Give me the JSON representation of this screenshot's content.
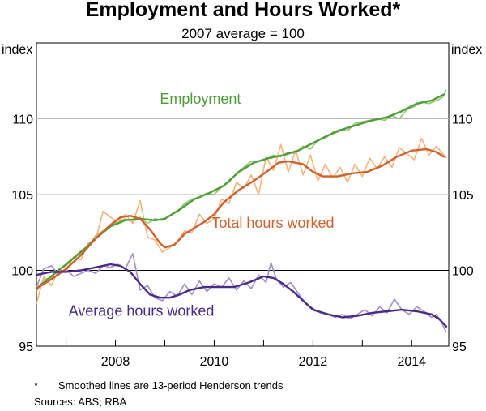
{
  "chart_data": {
    "type": "line",
    "title": "Employment and Hours Worked*",
    "subtitle": "2007 average = 100",
    "ylabel_left": "index",
    "ylabel_right": "index",
    "ylim": [
      95,
      115
    ],
    "xlim": [
      2006.4,
      2014.75
    ],
    "y_ticks": [
      95,
      100,
      105,
      110
    ],
    "x_ticks": [
      2008,
      2010,
      2012,
      2014
    ],
    "x_tick_labels": [
      "2008",
      "2010",
      "2012",
      "2014"
    ],
    "reference_line": 100,
    "grid": "horizontal",
    "series": [
      {
        "name": "Employment",
        "color": "#4f9d3a",
        "raw_color": "#8cc96c",
        "label_pos": [
          2008.9,
          111.0
        ],
        "trend": [
          [
            2006.4,
            98.8
          ],
          [
            2006.7,
            99.6
          ],
          [
            2007.0,
            100.4
          ],
          [
            2007.3,
            101.2
          ],
          [
            2007.6,
            102.1
          ],
          [
            2007.9,
            102.9
          ],
          [
            2008.2,
            103.3
          ],
          [
            2008.5,
            103.4
          ],
          [
            2008.8,
            103.3
          ],
          [
            2009.0,
            103.4
          ],
          [
            2009.3,
            104.0
          ],
          [
            2009.6,
            104.7
          ],
          [
            2009.9,
            105.1
          ],
          [
            2010.2,
            105.6
          ],
          [
            2010.5,
            106.5
          ],
          [
            2010.8,
            107.1
          ],
          [
            2011.1,
            107.4
          ],
          [
            2011.4,
            107.6
          ],
          [
            2011.7,
            107.9
          ],
          [
            2012.0,
            108.4
          ],
          [
            2012.3,
            108.9
          ],
          [
            2012.6,
            109.3
          ],
          [
            2012.9,
            109.6
          ],
          [
            2013.2,
            109.9
          ],
          [
            2013.5,
            110.1
          ],
          [
            2013.8,
            110.5
          ],
          [
            2014.1,
            111.0
          ],
          [
            2014.4,
            111.2
          ],
          [
            2014.65,
            111.6
          ]
        ],
        "raw": [
          [
            2006.4,
            98.6
          ],
          [
            2006.55,
            99.4
          ],
          [
            2006.7,
            99.5
          ],
          [
            2006.85,
            100.1
          ],
          [
            2007.0,
            100.3
          ],
          [
            2007.15,
            100.8
          ],
          [
            2007.3,
            101.3
          ],
          [
            2007.45,
            101.6
          ],
          [
            2007.6,
            102.3
          ],
          [
            2007.75,
            102.6
          ],
          [
            2007.9,
            103.0
          ],
          [
            2008.05,
            103.2
          ],
          [
            2008.2,
            103.4
          ],
          [
            2008.35,
            103.2
          ],
          [
            2008.5,
            103.5
          ],
          [
            2008.65,
            103.1
          ],
          [
            2008.8,
            103.4
          ],
          [
            2008.95,
            103.3
          ],
          [
            2009.1,
            103.6
          ],
          [
            2009.25,
            103.9
          ],
          [
            2009.4,
            104.4
          ],
          [
            2009.55,
            104.7
          ],
          [
            2009.7,
            104.8
          ],
          [
            2009.85,
            105.1
          ],
          [
            2010.0,
            105.0
          ],
          [
            2010.15,
            105.5
          ],
          [
            2010.3,
            105.8
          ],
          [
            2010.45,
            106.4
          ],
          [
            2010.6,
            106.8
          ],
          [
            2010.75,
            107.2
          ],
          [
            2010.9,
            107.2
          ],
          [
            2011.05,
            107.3
          ],
          [
            2011.2,
            107.6
          ],
          [
            2011.35,
            107.5
          ],
          [
            2011.5,
            107.8
          ],
          [
            2011.65,
            107.7
          ],
          [
            2011.8,
            108.2
          ],
          [
            2011.95,
            108.0
          ],
          [
            2012.1,
            108.6
          ],
          [
            2012.25,
            108.7
          ],
          [
            2012.4,
            109.1
          ],
          [
            2012.55,
            109.3
          ],
          [
            2012.7,
            109.2
          ],
          [
            2012.85,
            109.7
          ],
          [
            2013.0,
            109.8
          ],
          [
            2013.15,
            109.9
          ],
          [
            2013.3,
            110.0
          ],
          [
            2013.45,
            109.9
          ],
          [
            2013.6,
            110.2
          ],
          [
            2013.75,
            110.0
          ],
          [
            2013.9,
            110.6
          ],
          [
            2014.05,
            110.8
          ],
          [
            2014.2,
            111.1
          ],
          [
            2014.35,
            111.0
          ],
          [
            2014.5,
            111.2
          ],
          [
            2014.62,
            111.4
          ],
          [
            2014.7,
            111.9
          ]
        ]
      },
      {
        "name": "Total hours worked",
        "color": "#d2602a",
        "raw_color": "#f6b27c",
        "label_pos": [
          2009.95,
          102.8
        ],
        "trend": [
          [
            2006.4,
            98.8
          ],
          [
            2006.7,
            99.4
          ],
          [
            2007.0,
            100.1
          ],
          [
            2007.3,
            101.0
          ],
          [
            2007.6,
            102.1
          ],
          [
            2007.9,
            103.0
          ],
          [
            2008.1,
            103.5
          ],
          [
            2008.3,
            103.6
          ],
          [
            2008.5,
            103.4
          ],
          [
            2008.7,
            102.7
          ],
          [
            2008.9,
            101.8
          ],
          [
            2009.0,
            101.5
          ],
          [
            2009.2,
            101.7
          ],
          [
            2009.4,
            102.4
          ],
          [
            2009.6,
            102.8
          ],
          [
            2009.8,
            103.2
          ],
          [
            2010.0,
            103.7
          ],
          [
            2010.2,
            104.5
          ],
          [
            2010.5,
            105.3
          ],
          [
            2010.8,
            105.9
          ],
          [
            2011.1,
            106.6
          ],
          [
            2011.3,
            107.1
          ],
          [
            2011.5,
            107.2
          ],
          [
            2011.8,
            107.0
          ],
          [
            2012.0,
            106.5
          ],
          [
            2012.2,
            106.2
          ],
          [
            2012.5,
            106.2
          ],
          [
            2012.8,
            106.4
          ],
          [
            2013.1,
            106.5
          ],
          [
            2013.4,
            106.9
          ],
          [
            2013.7,
            107.5
          ],
          [
            2014.0,
            107.9
          ],
          [
            2014.3,
            108.0
          ],
          [
            2014.5,
            107.8
          ],
          [
            2014.65,
            107.5
          ]
        ],
        "raw": [
          [
            2006.4,
            97.8
          ],
          [
            2006.55,
            99.6
          ],
          [
            2006.7,
            99.0
          ],
          [
            2006.85,
            100.0
          ],
          [
            2007.0,
            99.9
          ],
          [
            2007.15,
            100.9
          ],
          [
            2007.3,
            100.7
          ],
          [
            2007.45,
            101.8
          ],
          [
            2007.6,
            102.0
          ],
          [
            2007.75,
            103.9
          ],
          [
            2007.9,
            103.5
          ],
          [
            2008.05,
            103.2
          ],
          [
            2008.2,
            103.7
          ],
          [
            2008.35,
            103.1
          ],
          [
            2008.5,
            104.6
          ],
          [
            2008.65,
            102.2
          ],
          [
            2008.8,
            102.0
          ],
          [
            2008.95,
            101.2
          ],
          [
            2009.1,
            101.5
          ],
          [
            2009.25,
            101.9
          ],
          [
            2009.4,
            102.6
          ],
          [
            2009.55,
            102.5
          ],
          [
            2009.7,
            103.7
          ],
          [
            2009.85,
            103.1
          ],
          [
            2010.0,
            103.4
          ],
          [
            2010.15,
            104.7
          ],
          [
            2010.3,
            104.4
          ],
          [
            2010.45,
            105.8
          ],
          [
            2010.6,
            105.4
          ],
          [
            2010.75,
            106.3
          ],
          [
            2010.9,
            105.0
          ],
          [
            2011.05,
            107.5
          ],
          [
            2011.2,
            106.6
          ],
          [
            2011.35,
            108.3
          ],
          [
            2011.5,
            106.5
          ],
          [
            2011.65,
            107.9
          ],
          [
            2011.8,
            106.3
          ],
          [
            2011.95,
            107.6
          ],
          [
            2012.1,
            105.9
          ],
          [
            2012.25,
            107.0
          ],
          [
            2012.4,
            106.1
          ],
          [
            2012.55,
            106.8
          ],
          [
            2012.7,
            105.8
          ],
          [
            2012.85,
            107.0
          ],
          [
            2013.0,
            106.2
          ],
          [
            2013.15,
            107.4
          ],
          [
            2013.3,
            106.7
          ],
          [
            2013.45,
            107.5
          ],
          [
            2013.6,
            106.8
          ],
          [
            2013.75,
            108.1
          ],
          [
            2013.9,
            107.7
          ],
          [
            2014.05,
            107.3
          ],
          [
            2014.2,
            108.7
          ],
          [
            2014.35,
            107.6
          ],
          [
            2014.5,
            108.2
          ],
          [
            2014.6,
            107.8
          ],
          [
            2014.7,
            107.4
          ]
        ]
      },
      {
        "name": "Average hours worked",
        "color": "#4a2a8a",
        "raw_color": "#a38ccd",
        "label_pos": [
          2007.05,
          97.0
        ],
        "trend": [
          [
            2006.4,
            99.7
          ],
          [
            2006.7,
            99.9
          ],
          [
            2007.0,
            99.9
          ],
          [
            2007.3,
            100.0
          ],
          [
            2007.6,
            100.2
          ],
          [
            2007.9,
            100.4
          ],
          [
            2008.1,
            100.3
          ],
          [
            2008.3,
            99.9
          ],
          [
            2008.5,
            99.1
          ],
          [
            2008.7,
            98.4
          ],
          [
            2008.9,
            98.2
          ],
          [
            2009.1,
            98.2
          ],
          [
            2009.3,
            98.4
          ],
          [
            2009.5,
            98.7
          ],
          [
            2009.8,
            98.9
          ],
          [
            2010.1,
            98.9
          ],
          [
            2010.4,
            98.9
          ],
          [
            2010.7,
            99.2
          ],
          [
            2011.0,
            99.6
          ],
          [
            2011.2,
            99.5
          ],
          [
            2011.4,
            99.1
          ],
          [
            2011.6,
            98.6
          ],
          [
            2011.8,
            98.0
          ],
          [
            2012.0,
            97.4
          ],
          [
            2012.3,
            97.1
          ],
          [
            2012.6,
            96.9
          ],
          [
            2012.9,
            97.0
          ],
          [
            2013.2,
            97.2
          ],
          [
            2013.5,
            97.3
          ],
          [
            2013.8,
            97.4
          ],
          [
            2014.1,
            97.3
          ],
          [
            2014.4,
            97.1
          ],
          [
            2014.55,
            96.8
          ],
          [
            2014.7,
            96.3
          ]
        ],
        "raw": [
          [
            2006.4,
            98.9
          ],
          [
            2006.55,
            100.1
          ],
          [
            2006.7,
            100.3
          ],
          [
            2006.85,
            99.7
          ],
          [
            2007.0,
            100.1
          ],
          [
            2007.15,
            99.6
          ],
          [
            2007.3,
            99.8
          ],
          [
            2007.45,
            100.0
          ],
          [
            2007.6,
            99.8
          ],
          [
            2007.75,
            100.3
          ],
          [
            2007.9,
            100.2
          ],
          [
            2008.05,
            100.4
          ],
          [
            2008.2,
            100.1
          ],
          [
            2008.35,
            101.1
          ],
          [
            2008.5,
            98.7
          ],
          [
            2008.65,
            99.0
          ],
          [
            2008.8,
            98.2
          ],
          [
            2008.95,
            98.0
          ],
          [
            2009.1,
            98.6
          ],
          [
            2009.25,
            98.3
          ],
          [
            2009.4,
            99.1
          ],
          [
            2009.55,
            98.4
          ],
          [
            2009.7,
            99.3
          ],
          [
            2009.85,
            98.6
          ],
          [
            2010.0,
            99.1
          ],
          [
            2010.15,
            98.9
          ],
          [
            2010.3,
            99.5
          ],
          [
            2010.45,
            98.7
          ],
          [
            2010.6,
            99.3
          ],
          [
            2010.75,
            98.8
          ],
          [
            2010.9,
            99.7
          ],
          [
            2011.05,
            99.2
          ],
          [
            2011.15,
            100.5
          ],
          [
            2011.25,
            99.5
          ],
          [
            2011.4,
            98.9
          ],
          [
            2011.55,
            99.2
          ],
          [
            2011.7,
            98.5
          ],
          [
            2011.85,
            97.8
          ],
          [
            2012.0,
            97.5
          ],
          [
            2012.15,
            97.2
          ],
          [
            2012.3,
            97.1
          ],
          [
            2012.45,
            96.9
          ],
          [
            2012.6,
            97.1
          ],
          [
            2012.75,
            96.8
          ],
          [
            2012.9,
            97.1
          ],
          [
            2013.05,
            97.4
          ],
          [
            2013.2,
            97.0
          ],
          [
            2013.35,
            97.6
          ],
          [
            2013.5,
            97.2
          ],
          [
            2013.65,
            98.1
          ],
          [
            2013.8,
            97.4
          ],
          [
            2013.95,
            97.1
          ],
          [
            2014.1,
            97.6
          ],
          [
            2014.25,
            97.3
          ],
          [
            2014.4,
            96.9
          ],
          [
            2014.5,
            97.1
          ],
          [
            2014.6,
            96.6
          ],
          [
            2014.7,
            95.9
          ]
        ]
      }
    ]
  },
  "footnotes": {
    "note_marker": "*",
    "note_text": "Smoothed lines are 13-period Henderson trends",
    "sources": "Sources:  ABS; RBA"
  }
}
